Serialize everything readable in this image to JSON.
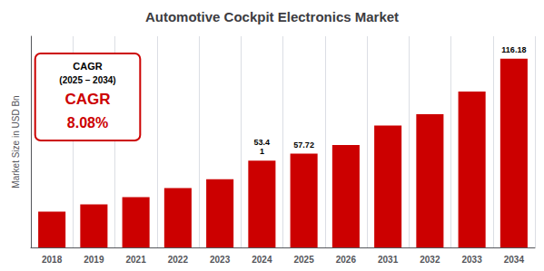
{
  "chart_data": {
    "type": "bar",
    "title": "Automotive Cockpit Electronics Market",
    "ylabel": "Market Size in USD Bn",
    "categories": [
      "2018",
      "2019",
      "2021",
      "2022",
      "2023",
      "2024",
      "2025",
      "2026",
      "2031",
      "2032",
      "2033",
      "2034"
    ],
    "values": [
      22.0,
      26.5,
      31.0,
      36.5,
      42.0,
      53.41,
      57.72,
      63.0,
      75.0,
      82.0,
      96.0,
      116.18
    ],
    "value_labels": [
      null,
      null,
      null,
      null,
      null,
      "53.4\n1",
      "57.72",
      null,
      null,
      null,
      null,
      "116.18"
    ],
    "color": "#cc0000",
    "ylim": [
      0,
      130
    ],
    "grid": "x",
    "tick_labels": "x",
    "annotations": [
      "CAGR",
      "(2025 – 2034)",
      "CAGR",
      "8.08%"
    ]
  }
}
